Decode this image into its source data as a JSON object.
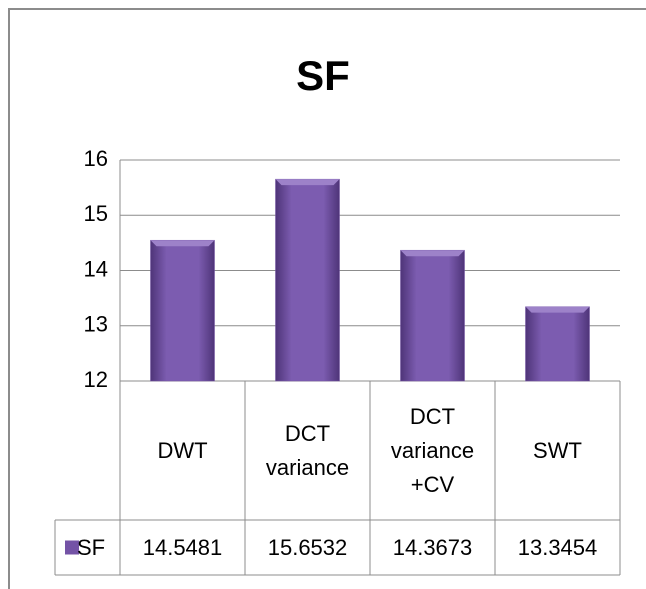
{
  "chart_data": {
    "type": "bar",
    "title": "SF",
    "categories": [
      "DWT",
      "DCT variance",
      "DCT variance +CV",
      "SWT"
    ],
    "series": [
      {
        "name": "SF",
        "color": "#7453a6",
        "values": [
          14.5481,
          15.6532,
          14.3673,
          13.3454
        ]
      }
    ],
    "ylim": [
      12,
      16
    ],
    "yticks": [
      12,
      13,
      14,
      15,
      16
    ],
    "grid": true
  }
}
